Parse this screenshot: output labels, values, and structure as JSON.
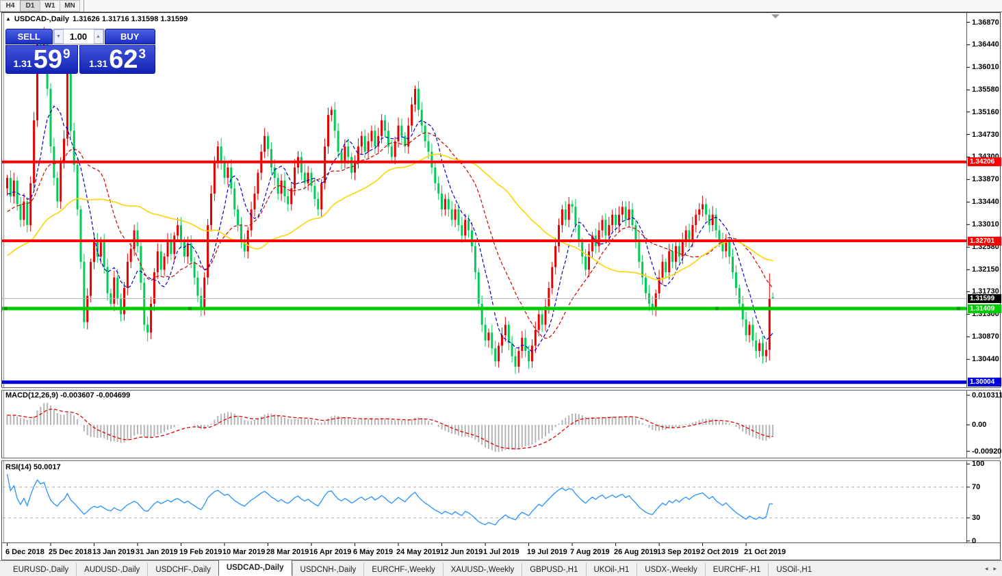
{
  "toolbar": {
    "timeframes": [
      {
        "label": "H4",
        "active": false
      },
      {
        "label": "D1",
        "active": true
      },
      {
        "label": "W1",
        "active": false
      },
      {
        "label": "MN",
        "active": false
      }
    ]
  },
  "chart_header": {
    "collapse_arrow": "▲",
    "symbol": "USDCAD-,Daily",
    "ohlc": "1.31626 1.31716 1.31598 1.31599"
  },
  "trade_panel": {
    "sell_label": "SELL",
    "buy_label": "BUY",
    "volume": "1.00",
    "spin_down": "▼",
    "spin_up": "▲",
    "sell_price": {
      "handle": "1.31",
      "big": "59",
      "pip": "9"
    },
    "buy_price": {
      "handle": "1.31",
      "big": "62",
      "pip": "3"
    }
  },
  "price_axis_ticks": [
    "1.36870",
    "1.36440",
    "1.36010",
    "1.35580",
    "1.35160",
    "1.34730",
    "1.34300",
    "1.33870",
    "1.33440",
    "1.33010",
    "1.32580",
    "1.32150",
    "1.31730",
    "1.31300",
    "1.30870",
    "1.30440"
  ],
  "levels": [
    {
      "label": "1.34206",
      "value": 1.34206,
      "color": "#ff0000",
      "thickness": 4,
      "type": "resistance-line"
    },
    {
      "label": "1.32701",
      "value": 1.32701,
      "color": "#ff0000",
      "thickness": 4,
      "type": "resistance-line"
    },
    {
      "label": "1.31409",
      "value": 1.31409,
      "color": "#00cc00",
      "thickness": 5,
      "type": "support-line",
      "handles": [
        8,
        277,
        1047,
        1400
      ]
    },
    {
      "label": "1.30004",
      "value": 1.30004,
      "color": "#0000dd",
      "thickness": 5,
      "type": "support-line"
    },
    {
      "label": "1.31599",
      "value": 1.31599,
      "color": "#b4b4b4",
      "thickness": 1,
      "type": "last-price-line",
      "label_bg": "#000000"
    }
  ],
  "indicators": {
    "macd": {
      "label": "MACD(12,26,9) -0.003607 -0.004699",
      "main_value": -0.003607,
      "signal_value": -0.004699,
      "axis_ticks": [
        "0.010311",
        "0.00",
        "-0.009203"
      ],
      "histogram_color": "#b4b4b4",
      "signal_color": "#e00000"
    },
    "rsi": {
      "label": "RSI(14) 50.0017",
      "value": 50.0017,
      "axis_ticks": [
        "100",
        "70",
        "30",
        "0"
      ],
      "line_color": "#2492ff",
      "level_lines": [
        70,
        30
      ]
    }
  },
  "date_axis": [
    "6 Dec 2018",
    "25 Dec 2018",
    "13 Jan 2019",
    "31 Jan 2019",
    "19 Feb 2019",
    "10 Mar 2019",
    "28 Mar 2019",
    "16 Apr 2019",
    "6 May 2019",
    "24 May 2019",
    "12 Jun 2019",
    "1 Jul 2019",
    "19 Jul 2019",
    "7 Aug 2019",
    "26 Aug 2019",
    "13 Sep 2019",
    "2 Oct 2019",
    "21 Oct 2019"
  ],
  "tab_bar": {
    "tabs": [
      {
        "label": "EURUSD-,Daily",
        "active": false
      },
      {
        "label": "AUDUSD-,Daily",
        "active": false
      },
      {
        "label": "USDCHF-,Daily",
        "active": false
      },
      {
        "label": "USDCAD-,Daily",
        "active": true
      },
      {
        "label": "USDCNH-,Daily",
        "active": false
      },
      {
        "label": "EURCHF-,Weekly",
        "active": false
      },
      {
        "label": "XAUUSD-,Weekly",
        "active": false
      },
      {
        "label": "GBPUSD-,H1",
        "active": false
      },
      {
        "label": "UKOil-,H1",
        "active": false
      },
      {
        "label": "USDX-,Weekly",
        "active": false
      },
      {
        "label": "EURCHF-,H1",
        "active": false
      },
      {
        "label": "USOil-,H1",
        "active": false
      }
    ],
    "scroll_left": "◂",
    "scroll_right": "▸"
  },
  "chart_data": {
    "type": "candlestick",
    "symbol": "USDCAD",
    "timeframe": "Daily",
    "title": "USDCAD-,Daily",
    "visible_range": {
      "first_date": "6 Dec 2018",
      "last_date": "31 Oct 2019",
      "price_min": 1.2992,
      "price_max": 1.3704
    },
    "up_color": "#e60000",
    "down_color": "#00cc55",
    "closes": [
      1.339,
      1.3355,
      1.3385,
      1.334,
      1.331,
      1.3345,
      1.33,
      1.338,
      1.35,
      1.3655,
      1.362,
      1.366,
      1.356,
      1.345,
      1.339,
      1.3345,
      1.342,
      1.3465,
      1.359,
      1.348,
      1.3415,
      1.333,
      1.323,
      1.3115,
      1.3165,
      1.323,
      1.327,
      1.324,
      1.327,
      1.322,
      1.317,
      1.315,
      1.32,
      1.316,
      1.313,
      1.318,
      1.323,
      1.3255,
      1.329,
      1.326,
      1.319,
      1.311,
      1.3095,
      1.315,
      1.321,
      1.325,
      1.3215,
      1.324,
      1.327,
      1.3245,
      1.328,
      1.33,
      1.327,
      1.324,
      1.3265,
      1.323,
      1.32,
      1.3165,
      1.314,
      1.32,
      1.33,
      1.336,
      1.342,
      1.345,
      1.342,
      1.339,
      1.341,
      1.337,
      1.333,
      1.33,
      1.327,
      1.325,
      1.329,
      1.333,
      1.336,
      1.34,
      1.344,
      1.347,
      1.3445,
      1.341,
      1.339,
      1.336,
      1.3385,
      1.3355,
      1.334,
      1.337,
      1.341,
      1.343,
      1.34,
      1.338,
      1.34,
      1.3375,
      1.335,
      1.333,
      1.338,
      1.345,
      1.351,
      1.352,
      1.348,
      1.344,
      1.342,
      1.345,
      1.343,
      1.34,
      1.342,
      1.345,
      1.347,
      1.344,
      1.346,
      1.348,
      1.345,
      1.347,
      1.35,
      1.348,
      1.345,
      1.343,
      1.346,
      1.349,
      1.347,
      1.345,
      1.349,
      1.353,
      1.356,
      1.352,
      1.349,
      1.346,
      1.344,
      1.341,
      1.338,
      1.336,
      1.333,
      1.335,
      1.333,
      1.331,
      1.333,
      1.33,
      1.328,
      1.331,
      1.329,
      1.326,
      1.321,
      1.315,
      1.311,
      1.308,
      1.3095,
      1.3065,
      1.304,
      1.307,
      1.309,
      1.311,
      1.3075,
      1.305,
      1.303,
      1.306,
      1.3085,
      1.306,
      1.304,
      1.307,
      1.31,
      1.313,
      1.311,
      1.3145,
      1.318,
      1.322,
      1.326,
      1.33,
      1.333,
      1.331,
      1.334,
      1.3335,
      1.33,
      1.327,
      1.324,
      1.3215,
      1.325,
      1.328,
      1.326,
      1.329,
      1.331,
      1.328,
      1.33,
      1.332,
      1.33,
      1.332,
      1.3335,
      1.331,
      1.333,
      1.33,
      1.327,
      1.323,
      1.32,
      1.317,
      1.315,
      1.314,
      1.317,
      1.32,
      1.323,
      1.321,
      1.325,
      1.323,
      1.326,
      1.324,
      1.327,
      1.329,
      1.327,
      1.33,
      1.332,
      1.333,
      1.334,
      1.332,
      1.33,
      1.332,
      1.329,
      1.327,
      1.325,
      1.327,
      1.324,
      1.321,
      1.318,
      1.315,
      1.312,
      1.309,
      1.311,
      1.308,
      1.306,
      1.3075,
      1.305,
      1.3062,
      1.316,
      1.31599
    ],
    "overrides": {
      "11": {
        "h": 1.3678
      },
      "42": {
        "l": 1.3078
      },
      "146": {
        "l": 1.303
      },
      "152": {
        "l": 1.3016
      },
      "228": {
        "o": 1.3062,
        "h": 1.3208,
        "l": 1.3042,
        "c": 1.316
      },
      "229": {
        "o": 1.31626,
        "h": 1.31716,
        "l": 1.31598,
        "c": 1.31599
      }
    },
    "moving_averages": [
      {
        "period": 8,
        "color": "#0000cc",
        "style": "dashed"
      },
      {
        "period": 21,
        "color": "#cc0000",
        "style": "dashed"
      },
      {
        "period": 55,
        "color": "#ffd400",
        "style": "solid"
      }
    ],
    "prehistory": {
      "bars": 64,
      "from": 1.306,
      "to": 1.337
    }
  }
}
